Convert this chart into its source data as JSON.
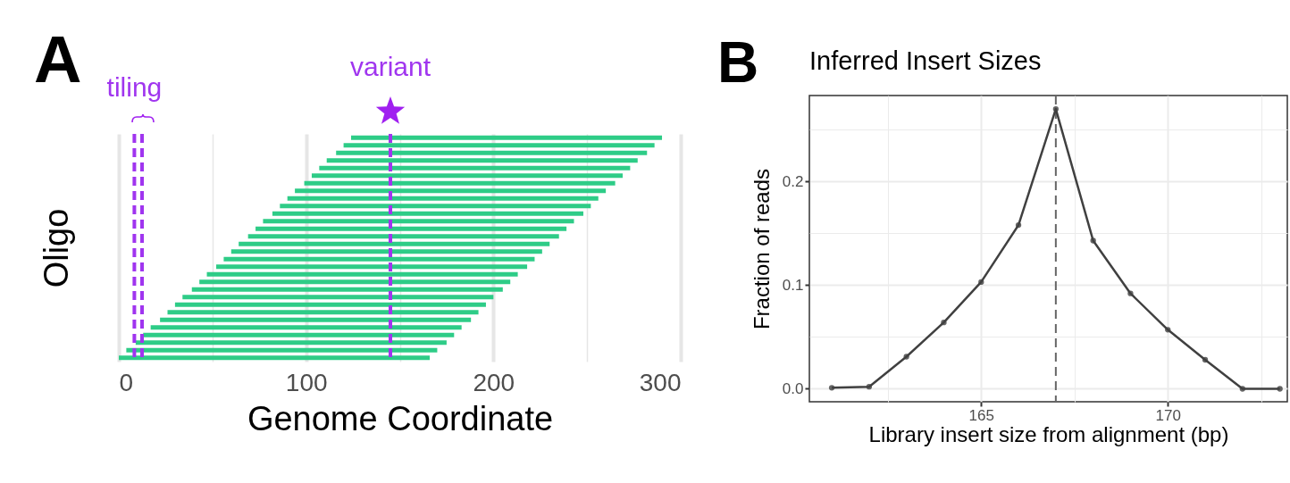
{
  "chart_data": [
    {
      "type": "bar",
      "orientation": "horizontal",
      "categories": [
        null,
        null,
        null,
        null,
        null,
        null,
        null,
        null,
        null,
        null,
        null,
        null,
        null,
        null,
        null,
        null,
        null,
        null,
        null,
        null,
        null,
        null,
        null,
        null,
        null,
        null,
        null,
        null,
        null,
        null
      ],
      "base": [
        124,
        120,
        116,
        111,
        107,
        103,
        99,
        94,
        90,
        86,
        82,
        77,
        73,
        69,
        64,
        60,
        56,
        52,
        47,
        43,
        39,
        34,
        30,
        26,
        22,
        17,
        13,
        9,
        4,
        0
      ],
      "values": [
        166,
        166,
        166,
        166,
        166,
        166,
        166,
        166,
        166,
        166,
        166,
        166,
        166,
        166,
        166,
        166,
        166,
        166,
        166,
        166,
        166,
        166,
        166,
        166,
        166,
        166,
        166,
        166,
        166,
        166
      ],
      "color": "#2ecc87",
      "xlabel": "Genome Coordinate",
      "ylabel": "Oligo",
      "xlim": [
        0,
        300
      ],
      "xticks": [
        0,
        {
          "value": 50,
          "label": null
        },
        100,
        {
          "value": 150,
          "label": null
        },
        200,
        {
          "value": 250,
          "label": null
        },
        300
      ],
      "grid": "x",
      "tick_labels": "x",
      "ref_lines": [
        {
          "axis": "x",
          "value": 8.3,
          "label": "tiling",
          "color": "#a035ef",
          "line_style": "dashed"
        },
        {
          "axis": "x",
          "value": 12.4,
          "label": null,
          "color": "#a035ef",
          "line_style": "dashed"
        },
        {
          "axis": "x",
          "value": 145,
          "label": "variant",
          "color": "#a035ef",
          "line_style": "dashed"
        }
      ],
      "annotations": [
        "A"
      ]
    },
    {
      "type": "line",
      "title": "Inferred Insert Sizes",
      "x": [
        161,
        162,
        163,
        164,
        165,
        166,
        167,
        168,
        169,
        170,
        171,
        172,
        173
      ],
      "values": [
        0.001,
        0.002,
        0.031,
        0.064,
        0.103,
        0.158,
        0.27,
        0.143,
        0.092,
        0.057,
        0.028,
        0.0,
        0.0
      ],
      "color": "#404040",
      "marker": "circle",
      "xlabel": "Library insert size from alignment (bp)",
      "ylabel": "Fraction of reads",
      "xlim": [
        160.4,
        173.2
      ],
      "ylim": [
        -0.0125,
        0.283
      ],
      "xticks": [
        {
          "value": 162.5,
          "label": null
        },
        165,
        {
          "value": 167.5,
          "label": null
        },
        170,
        {
          "value": 172.5,
          "label": null
        }
      ],
      "yticks": [
        {
          "value": 0,
          "label": "0.0"
        },
        {
          "value": 0.05,
          "label": null
        },
        0.1,
        {
          "value": 0.15,
          "label": null
        },
        0.2,
        {
          "value": 0.25,
          "label": null
        }
      ],
      "grid": true,
      "ref_lines": [
        {
          "axis": "x",
          "value": 167,
          "color": "#666666",
          "line_style": "dashed"
        }
      ],
      "annotations": [
        "B"
      ]
    }
  ]
}
